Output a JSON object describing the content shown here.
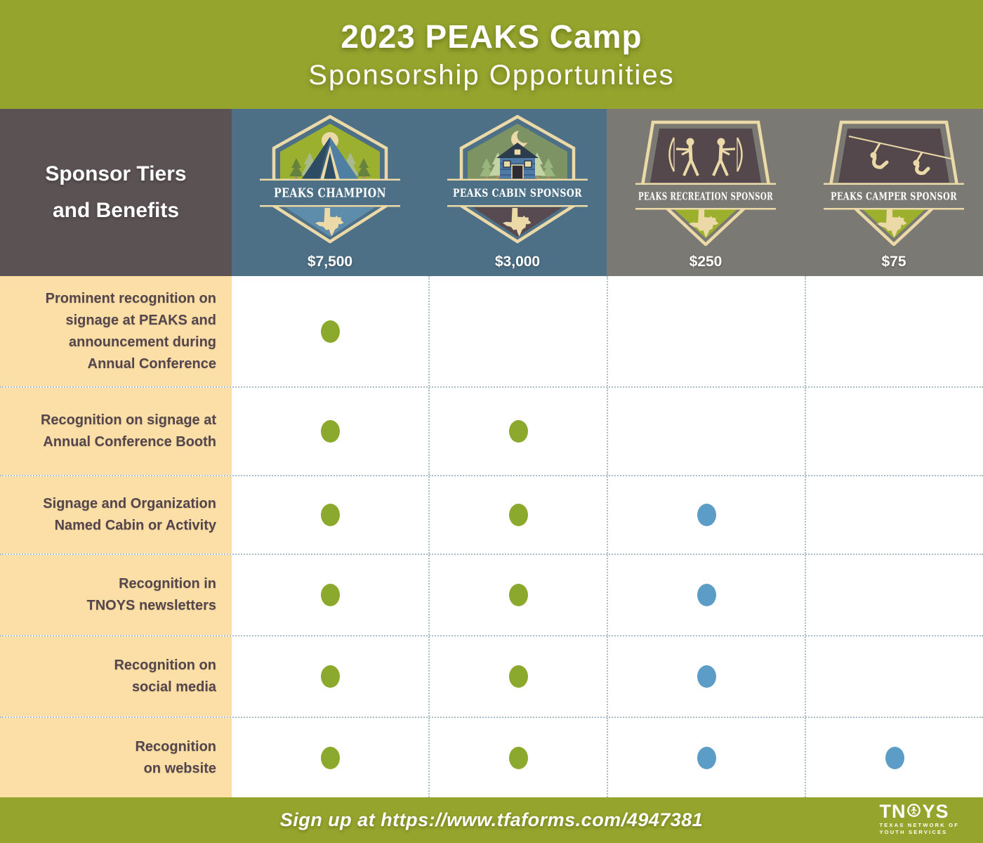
{
  "header": {
    "line1": "2023 PEAKS Camp",
    "line2": "Sponsorship Opportunities"
  },
  "corner": {
    "label": "Sponsor Tiers\nand Benefits"
  },
  "tiers": [
    {
      "name": "PEAKS CHAMPION",
      "price": "$7,500",
      "badge_shape": "hexagon",
      "badge_icon": "tent-camp-scene",
      "header_bg": "#4d7086",
      "dot_color": "#8ba92d"
    },
    {
      "name": "PEAKS CABIN SPONSOR",
      "price": "$3,000",
      "badge_shape": "hexagon",
      "badge_icon": "cabin-moon-scene",
      "header_bg": "#4d7086",
      "dot_color": "#8ba92d"
    },
    {
      "name": "PEAKS RECREATION SPONSOR",
      "price": "$250",
      "badge_shape": "pentagon",
      "badge_icon": "archery-scene",
      "header_bg": "#7b7973",
      "dot_color": "#5c9dc7"
    },
    {
      "name": "PEAKS CAMPER SPONSOR",
      "price": "$75",
      "badge_shape": "pentagon",
      "badge_icon": "zipline-scene",
      "header_bg": "#7b7973",
      "dot_color": "#5c9dc7"
    }
  ],
  "benefits": [
    {
      "label": "Prominent recognition on\nsignage at PEAKS and\nannouncement during\nAnnual Conference",
      "included": [
        true,
        false,
        false,
        false
      ]
    },
    {
      "label": "Recognition on signage at\nAnnual Conference Booth",
      "included": [
        true,
        true,
        false,
        false
      ]
    },
    {
      "label": "Signage and Organization\nNamed Cabin or Activity",
      "included": [
        true,
        true,
        true,
        false
      ]
    },
    {
      "label": "Recognition in\nTNOYS newsletters",
      "included": [
        true,
        true,
        true,
        false
      ]
    },
    {
      "label": "Recognition on\nsocial media",
      "included": [
        true,
        true,
        true,
        false
      ]
    },
    {
      "label": "Recognition\non website",
      "included": [
        true,
        true,
        true,
        true
      ]
    }
  ],
  "footer": {
    "signup": "Sign up at https://www.tfaforms.com/4947381",
    "logo": {
      "tn": "TN",
      "ys": "YS",
      "tagline1": "TEXAS NETWORK OF",
      "tagline2": "YOUTH SERVICES"
    }
  },
  "colors": {
    "header_green": "#95a42d",
    "tier_blue": "#4d7086",
    "tier_gray": "#7b7973",
    "corner_brown": "#5b5254",
    "benefit_peach": "#fbdfa7",
    "dot_green": "#8ba92d",
    "dot_blue": "#5c9dc7",
    "grid_dotted_line": "#a9bdcb",
    "badge_cream": "#ecd9a8"
  }
}
